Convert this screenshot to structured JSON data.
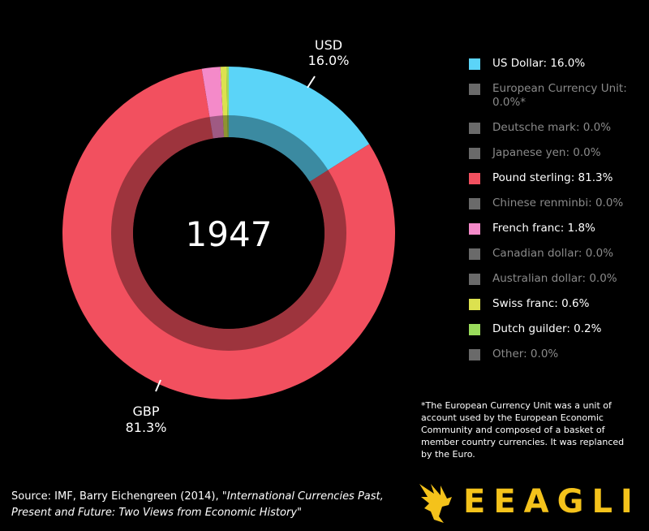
{
  "chart_data": {
    "type": "donut",
    "center_label": "1947",
    "slices": [
      {
        "name": "US Dollar",
        "label": "US Dollar: 16.0%",
        "value": 16.0,
        "color": "#5bd4f8"
      },
      {
        "name": "European Currency Unit",
        "label": "European Currency Unit: 0.0%*",
        "value": 0.0,
        "color": "#6a6a6a"
      },
      {
        "name": "Deutsche mark",
        "label": "Deutsche mark: 0.0%",
        "value": 0.0,
        "color": "#6a6a6a"
      },
      {
        "name": "Japanese yen",
        "label": "Japanese yen: 0.0%",
        "value": 0.0,
        "color": "#6a6a6a"
      },
      {
        "name": "Pound sterling",
        "label": "Pound sterling: 81.3%",
        "value": 81.3,
        "color": "#f2505f"
      },
      {
        "name": "Chinese renminbi",
        "label": "Chinese renminbi: 0.0%",
        "value": 0.0,
        "color": "#6a6a6a"
      },
      {
        "name": "French franc",
        "label": "French franc: 1.8%",
        "value": 1.8,
        "color": "#f48ac9"
      },
      {
        "name": "Canadian dollar",
        "label": "Canadian dollar: 0.0%",
        "value": 0.0,
        "color": "#6a6a6a"
      },
      {
        "name": "Australian dollar",
        "label": "Australian dollar: 0.0%",
        "value": 0.0,
        "color": "#6a6a6a"
      },
      {
        "name": "Swiss franc",
        "label": "Swiss franc: 0.6%",
        "value": 0.6,
        "color": "#dce14f"
      },
      {
        "name": "Dutch guilder",
        "label": "Dutch guilder: 0.2%",
        "value": 0.2,
        "color": "#9adb5c"
      },
      {
        "name": "Other",
        "label": "Other: 0.0%",
        "value": 0.0,
        "color": "#6a6a6a"
      }
    ],
    "callouts": [
      {
        "code": "USD",
        "value_label": "16.0%"
      },
      {
        "code": "GBP",
        "value_label": "81.3%"
      }
    ]
  },
  "footnote": "*The European Currency Unit was a unit of account used by the European Economic Community and composed of a basket of member country currencies. It was replanced by the Euro.",
  "source": {
    "prefix": "Source: IMF, Barry Eichengreen (2014), ",
    "title": "\"International Currencies Past, Present and Future: Two Views from Economic History\""
  },
  "brand": {
    "name": "EEAGLI",
    "color": "#f4c21b"
  }
}
